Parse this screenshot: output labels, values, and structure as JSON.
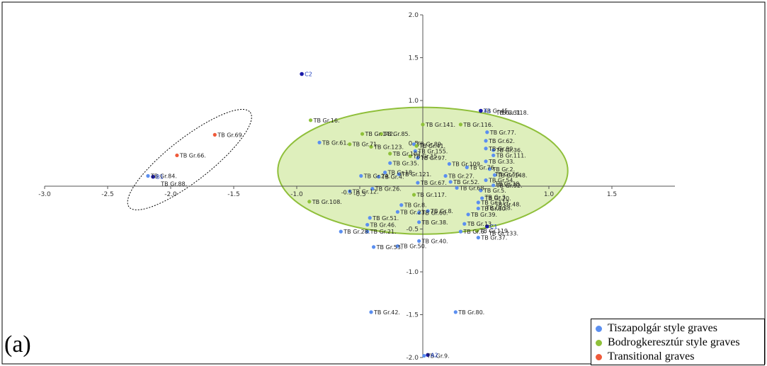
{
  "panel_letter": "(a)",
  "colors": {
    "tiszapolgar": "#5b8ff0",
    "bodrogkeresztur": "#8fc13a",
    "transitional": "#ef5a3a",
    "centroid": "#1a1aa8",
    "ellipse_fill": "#d8ecb0",
    "ellipse_stroke": "#8fbf3a"
  },
  "legend": [
    {
      "label": "Tiszapolgár style graves",
      "color": "#5b8ff0"
    },
    {
      "label": "Bodrogkeresztúr style graves",
      "color": "#8fc13a"
    },
    {
      "label": "Transitional graves",
      "color": "#ef5a3a"
    }
  ],
  "chart_data": {
    "type": "scatter",
    "title": "",
    "xlabel": "",
    "ylabel": "",
    "xlim": [
      -3.0,
      2.0
    ],
    "ylim": [
      -2.0,
      2.0
    ],
    "x_ticks": [
      "-3.0",
      "-2.5",
      "-2.0",
      "-1.5",
      "-1.0",
      "-0.5",
      "1.0",
      "1.5"
    ],
    "y_ticks": [
      "2.0",
      "1.5",
      "1.0",
      "0.5",
      "-0.5",
      "-1.0",
      "-1.5",
      "-2.0"
    ],
    "grid": false,
    "legend_position": "bottom-right",
    "ellipses": [
      {
        "name": "bodrogkeresztur-ellipse",
        "cx": 0.0,
        "cy": 0.18,
        "rx": 1.15,
        "ry": 0.74,
        "style": "filled"
      },
      {
        "name": "transitional-ellipse",
        "cx": -1.85,
        "cy": 0.31,
        "rx": 0.61,
        "ry": 0.25,
        "rotate": -38,
        "style": "dotted"
      }
    ],
    "series": [
      {
        "name": "Tiszapolgár style graves",
        "group": "tiszapolgar",
        "points": [
          {
            "x": -0.49,
            "y": 0.12,
            "label": "TB Gr.24."
          },
          {
            "x": -0.26,
            "y": 0.27,
            "label": "TB Gr.35."
          },
          {
            "x": -0.35,
            "y": 0.11,
            "label": "TB Gr.4."
          },
          {
            "x": -0.3,
            "y": 0.16,
            "label": "TB Gr.18."
          },
          {
            "x": -0.19,
            "y": 0.14,
            "label": "TB Gr.121."
          },
          {
            "x": -0.04,
            "y": 0.33,
            "label": "TB Gr.97."
          },
          {
            "x": -0.06,
            "y": 0.41,
            "label": "TB Gr.155."
          },
          {
            "x": -0.07,
            "y": 0.49,
            "label": "TB Gr.89."
          },
          {
            "x": -0.04,
            "y": 0.04,
            "label": "TB Gr.67."
          },
          {
            "x": 0.18,
            "y": 0.12,
            "label": "TB Gr.27."
          },
          {
            "x": 0.21,
            "y": 0.26,
            "label": "TB Gr.109."
          },
          {
            "x": 0.22,
            "y": 0.05,
            "label": "TB Gr.52."
          },
          {
            "x": 0.27,
            "y": -0.02,
            "label": "TB Gr.68."
          },
          {
            "x": 0.35,
            "y": 0.22,
            "label": "TB Gr.76."
          },
          {
            "x": 0.51,
            "y": 0.63,
            "label": "TB Gr.77."
          },
          {
            "x": 0.5,
            "y": 0.53,
            "label": "TB Gr.62."
          },
          {
            "x": 0.5,
            "y": 0.44,
            "label": "TB Gr.99."
          },
          {
            "x": 0.56,
            "y": 0.42,
            "label": "TB Gr.36."
          },
          {
            "x": 0.56,
            "y": 0.36,
            "label": "TB Gr.111."
          },
          {
            "x": 0.5,
            "y": 0.29,
            "label": "TB Gr.33."
          },
          {
            "x": 0.53,
            "y": 0.2,
            "label": "TB Gr.2."
          },
          {
            "x": 0.57,
            "y": 0.13,
            "label": "TB Gr.148."
          },
          {
            "x": 0.5,
            "y": 0.07,
            "label": "TB Gr.54."
          },
          {
            "x": 0.56,
            "y": 0.01,
            "label": "TB Gr.92."
          },
          {
            "x": 0.46,
            "y": -0.05,
            "label": "TB Gr.5."
          },
          {
            "x": 0.47,
            "y": -0.14,
            "label": "TB Gr.20."
          },
          {
            "x": 0.44,
            "y": -0.19,
            "label": "TB Gr.117."
          },
          {
            "x": 0.44,
            "y": -0.26,
            "label": "TB Gr.60."
          },
          {
            "x": 0.36,
            "y": -0.33,
            "label": "TB Gr.39."
          },
          {
            "x": 0.33,
            "y": -0.44,
            "label": "TB Gr.13."
          },
          {
            "x": 0.3,
            "y": -0.53,
            "label": "TB Gr.6."
          },
          {
            "x": 0.44,
            "y": -0.6,
            "label": "TB Gr.37."
          },
          {
            "x": 0.04,
            "y": -0.29,
            "label": "TB Gr.8."
          },
          {
            "x": -0.03,
            "y": -0.31,
            "label": "TB Gr.60."
          },
          {
            "x": -0.2,
            "y": -0.3,
            "label": "TB Gr.23."
          },
          {
            "x": -0.17,
            "y": -0.22,
            "label": "TB Gr.8."
          },
          {
            "x": -0.58,
            "y": -0.06,
            "label": "TB Gr.12."
          },
          {
            "x": -0.4,
            "y": -0.03,
            "label": "TB Gr.26."
          },
          {
            "x": -0.42,
            "y": -0.37,
            "label": "TB Gr.51."
          },
          {
            "x": -0.44,
            "y": -0.45,
            "label": "TB Gr.46."
          },
          {
            "x": -0.65,
            "y": -0.53,
            "label": "TB Gr.28."
          },
          {
            "x": -0.44,
            "y": -0.53,
            "label": "TB Gr.21."
          },
          {
            "x": -0.03,
            "y": -0.42,
            "label": "TB Gr.38."
          },
          {
            "x": -0.03,
            "y": -0.64,
            "label": "TB Gr.40."
          },
          {
            "x": -0.39,
            "y": -0.71,
            "label": "TB Gr.53."
          },
          {
            "x": -0.2,
            "y": -0.7,
            "label": "TB Gr.50."
          },
          {
            "x": -0.82,
            "y": 0.51,
            "label": "TB Gr.61."
          },
          {
            "x": -0.41,
            "y": -1.47,
            "label": "TB Gr.42."
          },
          {
            "x": 0.26,
            "y": -1.47,
            "label": "TB Gr.80."
          },
          {
            "x": 0.01,
            "y": -1.98,
            "label": "TB Gr.9."
          },
          {
            "x": -2.18,
            "y": 0.12,
            "label": "TB Gr.84."
          },
          {
            "x": 0.46,
            "y": 0.88,
            "label": "TB Gr.45."
          }
        ]
      },
      {
        "name": "Bodrogkeresztúr style graves",
        "group": "bodrogkeresztur",
        "points": [
          {
            "x": -0.89,
            "y": 0.77,
            "label": "TB Gr.16."
          },
          {
            "x": -0.48,
            "y": 0.61,
            "label": "TB Gr.142."
          },
          {
            "x": -0.33,
            "y": 0.61,
            "label": "TB Gr.85."
          },
          {
            "x": 0.0,
            "y": 0.72,
            "label": "TB Gr.141."
          },
          {
            "x": 0.3,
            "y": 0.72,
            "label": "TB Gr.116."
          },
          {
            "x": -0.58,
            "y": 0.49,
            "label": "TB Gr.71."
          },
          {
            "x": -0.41,
            "y": 0.46,
            "label": "TB Gr.123."
          },
          {
            "x": -0.05,
            "y": 0.47,
            "label": "TB Gr.41."
          },
          {
            "x": -0.26,
            "y": 0.38,
            "label": "TB Gr.107."
          },
          {
            "x": -0.1,
            "y": 0.35,
            "label": "TB Gr.15."
          },
          {
            "x": -0.9,
            "y": -0.18,
            "label": "TB Gr.108."
          },
          {
            "x": -0.07,
            "y": -0.1,
            "label": "TB Gr.117."
          },
          {
            "x": 0.43,
            "y": -0.52,
            "label": "TB Gr.119."
          }
        ]
      },
      {
        "name": "Transitional graves",
        "group": "transitional",
        "points": [
          {
            "x": -1.65,
            "y": 0.6,
            "label": "TB Gr.69."
          },
          {
            "x": -1.95,
            "y": 0.36,
            "label": "TB Gr.66."
          }
        ]
      },
      {
        "name": "centroids",
        "group": "centroid",
        "points": [
          {
            "x": -0.96,
            "y": 1.31,
            "label": "C2"
          },
          {
            "x": 0.46,
            "y": 0.88,
            "label": "A1"
          },
          {
            "x": 0.51,
            "y": -0.47,
            "label": "C1"
          },
          {
            "x": 0.04,
            "y": -1.97,
            "label": "A2"
          },
          {
            "x": -2.14,
            "y": 0.11,
            "label": "B1"
          }
        ]
      }
    ],
    "extra_labels": [
      {
        "x": 0.56,
        "y": 0.86,
        "label": "TB Gr.31."
      },
      {
        "x": 0.58,
        "y": 0.86,
        "label": "TB Gr.118."
      },
      {
        "x": 0.55,
        "y": 0.14,
        "label": "TB Gr.56."
      },
      {
        "x": 0.55,
        "y": 0.03,
        "label": "TB Gr.38."
      },
      {
        "x": 0.55,
        "y": -0.21,
        "label": "TB Gr.48."
      },
      {
        "x": 0.5,
        "y": -0.55,
        "label": "TB Gr.133."
      },
      {
        "x": -0.67,
        "y": -0.07,
        "label": "-0.5"
      },
      {
        "x": -2.1,
        "y": 0.03,
        "label": "TB Gr.88."
      },
      {
        "x": 0.48,
        "y": -0.25,
        "label": "TB Gr.58."
      },
      {
        "x": 0.47,
        "y": -0.13,
        "label": "TB Gr.3."
      }
    ]
  }
}
